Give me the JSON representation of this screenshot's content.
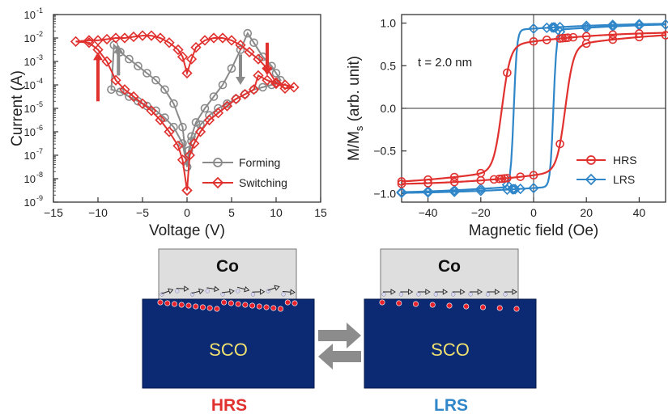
{
  "chart_data": [
    {
      "type": "line",
      "xlabel": "Voltage (V)",
      "ylabel": "Current (A)",
      "xlim": [
        -15,
        15
      ],
      "ylim_exponent": [
        -9,
        -1
      ],
      "yscale": "log",
      "x_ticks": [
        "−15",
        "−10",
        "−5",
        "0",
        "5",
        "10",
        "15"
      ],
      "y_ticks": [
        "10",
        "10",
        "10",
        "10",
        "10",
        "10",
        "10",
        "10",
        "10"
      ],
      "y_tick_exponents": [
        "-9",
        "-8",
        "-7",
        "-6",
        "-5",
        "-4",
        "-3",
        "-2",
        "-1"
      ],
      "legend_position": "bottom-right",
      "series": [
        {
          "name": "Forming",
          "color": "#8a8a8a",
          "marker": "circle",
          "x": [
            0,
            0.2,
            0.5,
            1,
            2,
            3,
            4,
            5,
            6,
            6.8,
            7.5,
            8.5,
            9.5,
            10,
            10.5,
            9.5,
            8.5,
            7.5,
            6.5,
            5.5,
            4.5,
            3.5,
            2.5,
            1.5,
            0.5,
            0,
            -0.5,
            -1.5,
            -2.5,
            -3.5,
            -4.5,
            -5.5,
            -6.5,
            -7.5,
            -8.5,
            -8.2,
            -7.5,
            -6.5,
            -5.5,
            -4.5,
            -3.5,
            -2.5,
            -1.5,
            -0.5,
            0
          ],
          "y_log10": [
            -7.5,
            -6.8,
            -6.2,
            -5.6,
            -5,
            -4.5,
            -4,
            -3.3,
            -2.5,
            -1.8,
            -2.2,
            -2.8,
            -3.2,
            -3.5,
            -3.8,
            -4,
            -4.1,
            -4.2,
            -4.4,
            -4.6,
            -4.8,
            -5,
            -5.3,
            -5.7,
            -6.4,
            -7.5,
            -6.5,
            -5.8,
            -5.4,
            -5.1,
            -4.9,
            -4.7,
            -4.5,
            -4.3,
            -4.2,
            -2.3,
            -2.6,
            -2.9,
            -3.2,
            -3.5,
            -3.8,
            -4.2,
            -4.8,
            -5.8,
            -7.5
          ]
        },
        {
          "name": "Switching",
          "color": "#e0312f",
          "marker": "diamond",
          "x": [
            0,
            0.3,
            0.8,
            1.5,
            2.5,
            3.5,
            4.5,
            5.5,
            6.5,
            7.5,
            8,
            9,
            10,
            11,
            12,
            11,
            10,
            9,
            8,
            7,
            6,
            5,
            4,
            3,
            2,
            1,
            0.5,
            0,
            -0.5,
            -1,
            -2,
            -3,
            -4,
            -5,
            -6,
            -7,
            -8,
            -9,
            -10,
            -11,
            -12.5,
            -11,
            -10,
            -9,
            -8,
            -7,
            -6,
            -5,
            -4,
            -3,
            -2,
            -1,
            -0.5,
            0
          ],
          "y_log10": [
            -8.5,
            -7,
            -6.5,
            -6,
            -5.5,
            -5.2,
            -4.9,
            -4.6,
            -4.4,
            -4.2,
            -3.6,
            -3.8,
            -3.95,
            -4,
            -4.1,
            -4.15,
            -3.9,
            -3.3,
            -2.9,
            -2.6,
            -2.3,
            -2.1,
            -2,
            -2,
            -2.1,
            -2.4,
            -2.9,
            -3.5,
            -2.8,
            -2.5,
            -2.2,
            -2,
            -1.9,
            -1.9,
            -1.95,
            -2,
            -2,
            -2.05,
            -2.1,
            -2.1,
            -2.15,
            -2.2,
            -2.5,
            -3,
            -3.8,
            -4.2,
            -4.5,
            -4.8,
            -5.1,
            -5.5,
            -6,
            -6.6,
            -7.2,
            -8.5
          ]
        }
      ],
      "arrows": [
        {
          "color": "#8a8a8a",
          "x": -7.7,
          "y_log10_from": -3.6,
          "y_log10_to": -2.3,
          "label": ""
        },
        {
          "color": "#8a8a8a",
          "x": 6,
          "y_log10_from": -2.7,
          "y_log10_to": -4,
          "label": ""
        },
        {
          "color": "#e0312f",
          "x": -10,
          "y_log10_from": -4.7,
          "y_log10_to": -2.6,
          "label": ""
        },
        {
          "color": "#e0312f",
          "x": 9,
          "y_log10_from": -2.2,
          "y_log10_to": -3.6,
          "label": ""
        }
      ]
    },
    {
      "type": "line",
      "xlabel": "Magnetic field (Oe)",
      "ylabel": "M/M",
      "ylabel_subscript": "s",
      "ylabel_suffix": " (arb. unit)",
      "xlim": [
        -50,
        50
      ],
      "ylim": [
        -1.1,
        1.1
      ],
      "x_ticks": [
        "−40",
        "−20",
        "0",
        "20",
        "40"
      ],
      "y_ticks": [
        "−1.0",
        "−0.5",
        "0.0",
        "0.5",
        "1.0"
      ],
      "annotation": "t = 2.0 nm",
      "legend_position": "bottom-right",
      "series": [
        {
          "name": "HRS",
          "color": "#e0312f",
          "marker": "circle",
          "coercivity": 12,
          "saturation": 0.9,
          "x": [
            -50,
            -40,
            -30,
            -20,
            -15,
            -13,
            -12,
            -11,
            -10,
            -5,
            0,
            10,
            20,
            30,
            40,
            50,
            40,
            30,
            20,
            15,
            13,
            12,
            11,
            10,
            5,
            0,
            -10,
            -20,
            -30,
            -40,
            -50
          ]
        },
        {
          "name": "LRS",
          "color": "#2f86c8",
          "marker": "diamond",
          "coercivity": 7.5,
          "saturation": 1.0,
          "x": [
            -50,
            -40,
            -30,
            -20,
            -10,
            -8,
            -7.5,
            -7,
            -5,
            0,
            10,
            20,
            30,
            40,
            50,
            40,
            30,
            20,
            10,
            8,
            7.5,
            7,
            5,
            0,
            -10,
            -20,
            -30,
            -40,
            -50
          ]
        }
      ]
    }
  ],
  "schematic": {
    "left": {
      "cap": "Co",
      "substrate": "SCO",
      "state": "HRS",
      "state_color": "#e0312f"
    },
    "right": {
      "cap": "Co",
      "substrate": "SCO",
      "state": "LRS",
      "state_color": "#2f86c8"
    },
    "arrow_color": "#8c8c8c",
    "substrate_color": "#0b2a73",
    "substrate_text_color": "#f0e070",
    "cap_color": "#dedede",
    "defect_color": "#e8222c"
  }
}
